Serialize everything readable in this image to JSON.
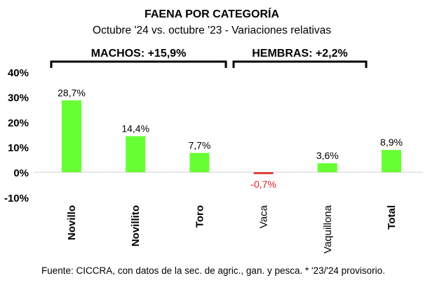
{
  "chart_data": {
    "type": "bar",
    "title": "FAENA POR CATEGORÍA",
    "subtitle": "Octubre '24 vs. octubre '23 - Variaciones relativas",
    "categories": [
      "Novillo",
      "Novillito",
      "Toro",
      "Vaca",
      "Vaquillona",
      "Total"
    ],
    "category_bold": [
      true,
      true,
      true,
      false,
      false,
      true
    ],
    "values": [
      28.7,
      14.4,
      7.7,
      -0.7,
      3.6,
      8.9
    ],
    "data_labels": [
      "28,7%",
      "14,4%",
      "7,7%",
      "-0,7%",
      "3,6%",
      "8,9%"
    ],
    "ylim": [
      -10,
      40
    ],
    "yticks": [
      40,
      30,
      20,
      10,
      0,
      -10
    ],
    "ytick_labels": [
      "40%",
      "30%",
      "20%",
      "10%",
      "0%",
      "-10%"
    ],
    "xlabel": "",
    "ylabel": "",
    "grid": false,
    "groups": [
      {
        "label": "MACHOS: +15,9%",
        "from": 0,
        "to": 2
      },
      {
        "label": "HEMBRAS: +2,2%",
        "from": 3,
        "to": 4
      }
    ],
    "colors": {
      "positive": "#66ff33",
      "negative": "#e02020",
      "negative_label": "#e02020",
      "axis": "#d9d9d9"
    },
    "footer": "Fuente: CICCRA, con datos de la sec. de agric., gan. y pesca. * '23/'24 provisorio."
  }
}
